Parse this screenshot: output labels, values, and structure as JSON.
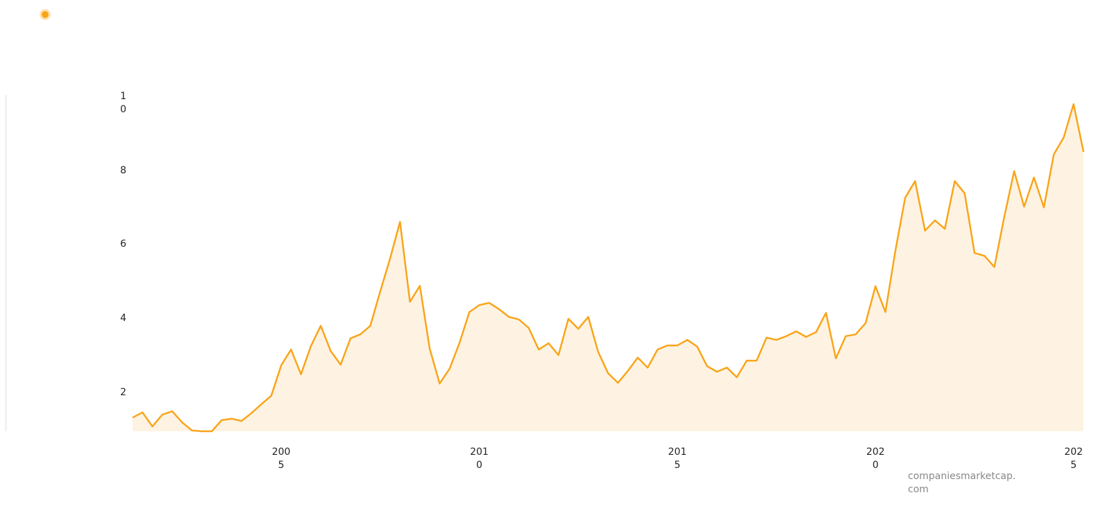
{
  "chart_data": {
    "type": "area",
    "x": [
      2001.25,
      2001.5,
      2001.75,
      2002,
      2002.25,
      2002.5,
      2002.75,
      2003,
      2003.25,
      2003.5,
      2003.75,
      2004,
      2004.25,
      2004.5,
      2004.75,
      2005,
      2005.25,
      2005.5,
      2005.75,
      2006,
      2006.25,
      2006.5,
      2006.75,
      2007,
      2007.25,
      2007.5,
      2007.75,
      2008,
      2008.25,
      2008.5,
      2008.75,
      2009,
      2009.25,
      2009.5,
      2009.75,
      2010,
      2010.25,
      2010.5,
      2010.75,
      2011,
      2011.25,
      2011.5,
      2011.75,
      2012,
      2012.25,
      2012.5,
      2012.75,
      2013,
      2013.25,
      2013.5,
      2013.75,
      2014,
      2014.25,
      2014.5,
      2014.75,
      2015,
      2015.25,
      2015.5,
      2015.75,
      2016,
      2016.25,
      2016.5,
      2016.75,
      2017,
      2017.25,
      2017.5,
      2017.75,
      2018,
      2018.25,
      2018.5,
      2018.75,
      2019,
      2019.25,
      2019.5,
      2019.75,
      2020,
      2020.25,
      2020.5,
      2020.75,
      2021,
      2021.25,
      2021.5,
      2021.75,
      2022,
      2022.25,
      2022.5,
      2022.75,
      2023,
      2023.25,
      2023.5,
      2023.75,
      2024,
      2024.25,
      2024.5,
      2024.75,
      2025,
      2025.25
    ],
    "values": [
      1.32,
      1.46,
      1.08,
      1.4,
      1.49,
      1.19,
      0.97,
      0.95,
      0.95,
      1.25,
      1.29,
      1.23,
      1.44,
      1.68,
      1.91,
      2.73,
      3.16,
      2.49,
      3.25,
      3.8,
      3.12,
      2.75,
      3.46,
      3.57,
      3.8,
      4.73,
      5.62,
      6.61,
      4.45,
      4.88,
      3.18,
      2.24,
      2.64,
      3.33,
      4.17,
      4.36,
      4.42,
      4.25,
      4.04,
      3.97,
      3.74,
      3.16,
      3.33,
      3.01,
      3.99,
      3.72,
      4.04,
      3.1,
      2.52,
      2.26,
      2.58,
      2.94,
      2.67,
      3.16,
      3.27,
      3.27,
      3.42,
      3.24,
      2.71,
      2.56,
      2.67,
      2.41,
      2.86,
      2.86,
      3.48,
      3.42,
      3.52,
      3.65,
      3.5,
      3.63,
      4.15,
      2.92,
      3.52,
      3.57,
      3.87,
      4.87,
      4.17,
      5.82,
      7.26,
      7.71,
      6.37,
      6.65,
      6.42,
      7.71,
      7.38,
      5.77,
      5.69,
      5.39,
      6.74,
      7.98,
      7.02,
      7.81,
      7.0,
      8.43,
      8.89,
      9.79,
      8.5
    ],
    "color": "#f9a51a",
    "fill": "#fef3e2",
    "xlim": [
      2001.25,
      2025.25
    ],
    "xticks": [
      2005,
      2010,
      2015,
      2020,
      2025
    ],
    "ylim": [
      0.95,
      10
    ],
    "yticks": [
      2,
      4,
      6,
      8,
      10
    ],
    "source": "companiesmarketcap.com"
  }
}
